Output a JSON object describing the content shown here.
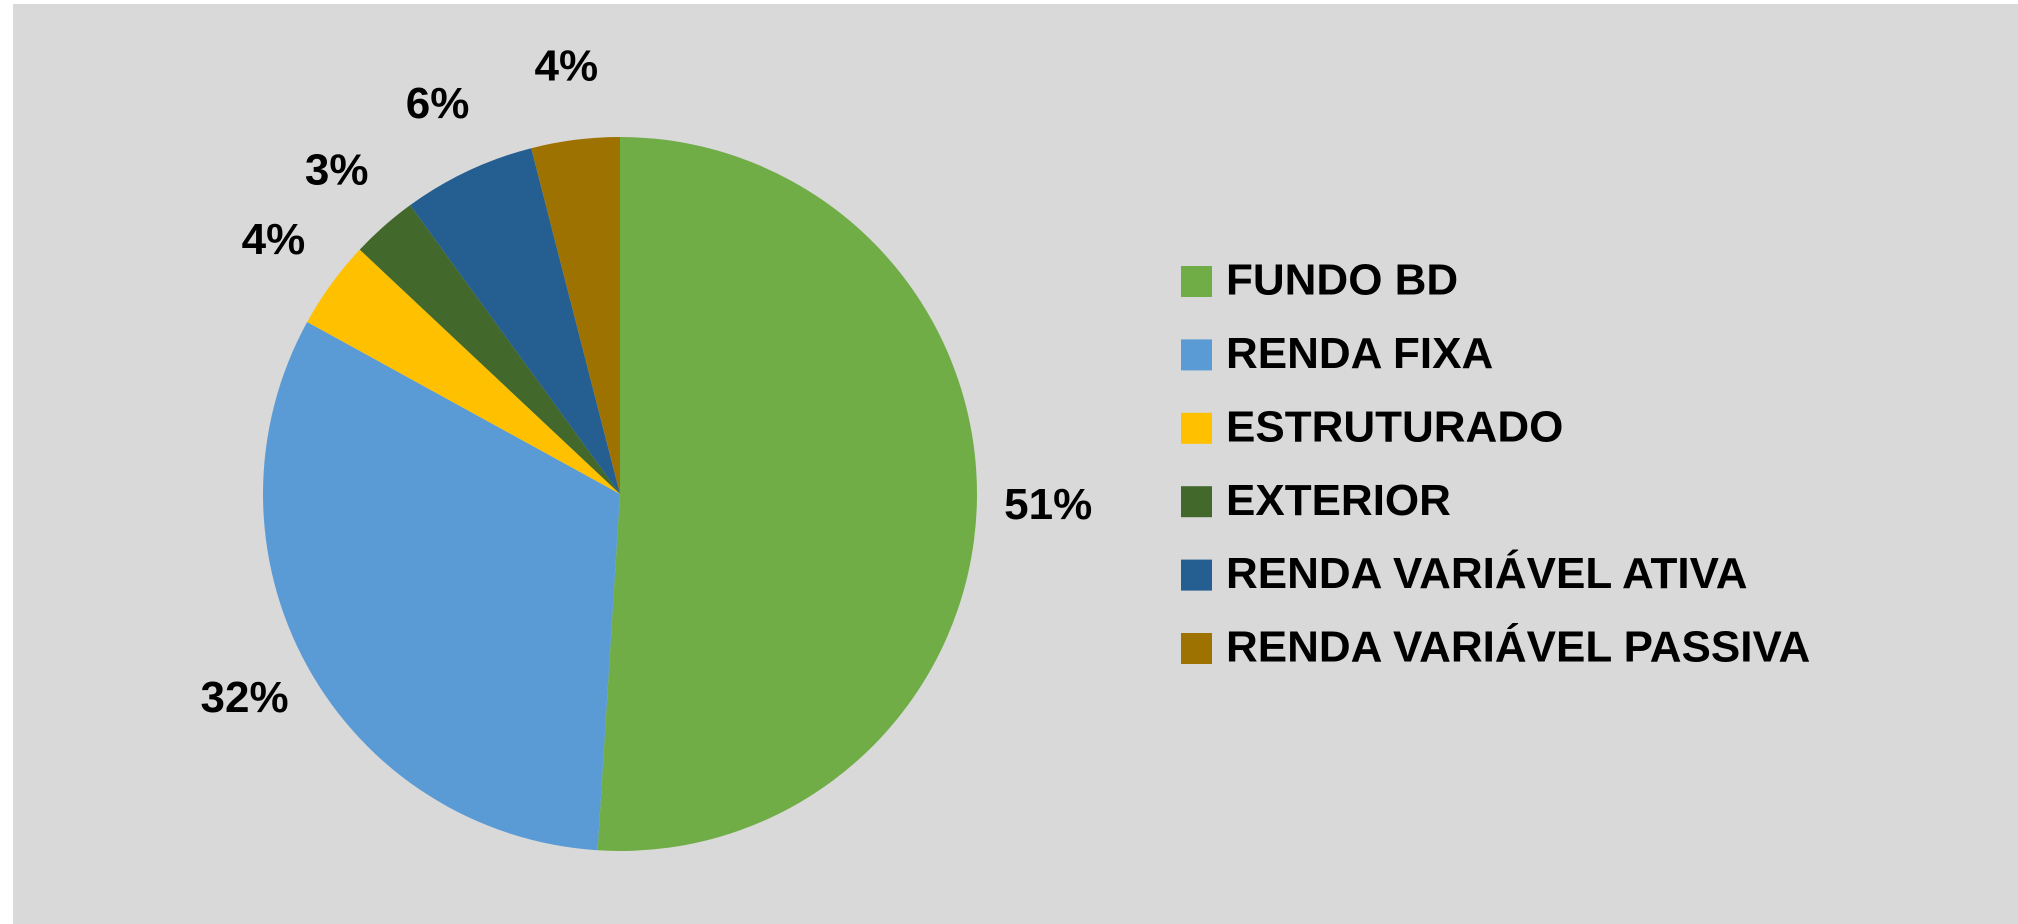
{
  "chart_data": {
    "type": "pie",
    "categories": [
      "FUNDO BD",
      "RENDA FIXA",
      "ESTRUTURADO",
      "EXTERIOR",
      "RENDA VARIÁVEL ATIVA",
      "RENDA VARIÁVEL PASSIVA"
    ],
    "values": [
      51,
      32,
      4,
      3,
      6,
      4
    ],
    "value_labels": [
      "51%",
      "32%",
      "4%",
      "3%",
      "6%",
      "4%"
    ],
    "colors": [
      "#70ad47",
      "#5b9bd5",
      "#ffc000",
      "#43682b",
      "#255e91",
      "#9e7200"
    ],
    "legend": "right"
  }
}
